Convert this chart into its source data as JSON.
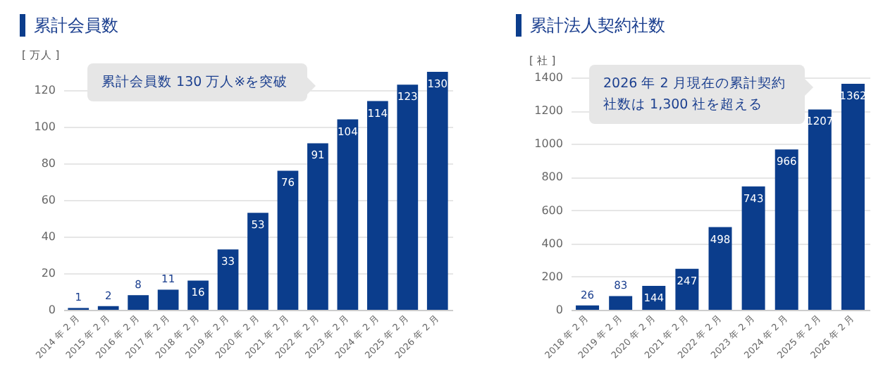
{
  "chart_data": [
    {
      "type": "bar",
      "title": "累計会員数",
      "ylabel": "[ 万人 ]",
      "categories": [
        "2014 年 2 月",
        "2015 年 2 月",
        "2016 年 2 月",
        "2017 年 2 月",
        "2018 年 2 月",
        "2019 年 2 月",
        "2020 年 2 月",
        "2021 年 2 月",
        "2022 年 2 月",
        "2023 年 2 月",
        "2024 年 2 月",
        "2025 年 2 月",
        "2026 年 2 月"
      ],
      "series": [
        {
          "color": "#0b3d8c",
          "values": [
            1,
            2,
            8,
            11,
            16,
            33,
            53,
            76,
            91,
            104,
            114,
            123,
            130
          ]
        }
      ],
      "ylim": [
        0,
        130
      ],
      "yticks": [
        0,
        20,
        40,
        60,
        80,
        100,
        120
      ],
      "grid": "y",
      "data_labels": true,
      "annotations": [
        "累計会員数 130 万人※を突破"
      ]
    },
    {
      "type": "bar",
      "title": "累計法人契約社数",
      "ylabel": "[ 社 ]",
      "categories": [
        "2018 年 2 月",
        "2019 年 2 月",
        "2020 年 2 月",
        "2021 年 2 月",
        "2022 年 2 月",
        "2023 年 2 月",
        "2024 年 2 月",
        "2025 年 2 月",
        "2026 年 2 月"
      ],
      "series": [
        {
          "color": "#0b3d8c",
          "values": [
            26,
            83,
            144,
            247,
            498,
            743,
            966,
            1207,
            1362
          ]
        }
      ],
      "ylim": [
        0,
        1400
      ],
      "yticks": [
        0,
        200,
        400,
        600,
        800,
        1000,
        1200,
        1400
      ],
      "grid": "y",
      "data_labels": true,
      "annotations": [
        "2026 年 2 月現在の累計契約社数は 1,300 社を超える"
      ]
    }
  ]
}
